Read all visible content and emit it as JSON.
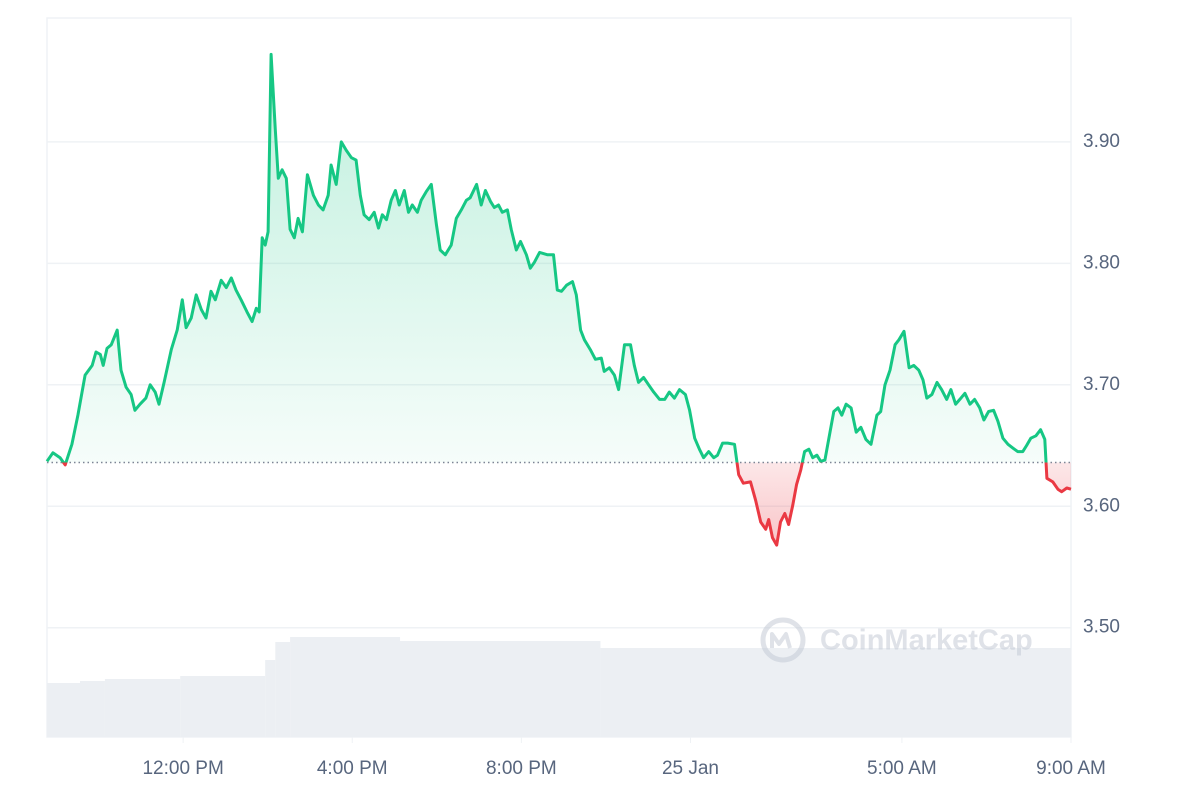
{
  "chart_data": {
    "type": "line",
    "x": [
      8.78,
      8.92,
      9.09,
      9.21,
      9.37,
      9.51,
      9.68,
      9.85,
      9.94,
      10.04,
      10.11,
      10.2,
      10.3,
      10.44,
      10.53,
      10.65,
      10.77,
      10.86,
      10.98,
      11.12,
      11.22,
      11.34,
      11.43,
      11.55,
      11.72,
      11.86,
      11.98,
      12.07,
      12.19,
      12.31,
      12.43,
      12.54,
      12.66,
      12.76,
      12.9,
      13.02,
      13.14,
      13.25,
      13.37,
      13.51,
      13.63,
      13.73,
      13.8,
      13.87,
      13.94,
      14.01,
      14.08,
      14.18,
      14.25,
      14.34,
      14.44,
      14.53,
      14.63,
      14.72,
      14.82,
      14.94,
      15.08,
      15.2,
      15.31,
      15.43,
      15.5,
      15.62,
      15.74,
      15.86,
      15.98,
      16.09,
      16.19,
      16.28,
      16.4,
      16.52,
      16.62,
      16.71,
      16.81,
      16.92,
      17.02,
      17.11,
      17.23,
      17.33,
      17.42,
      17.54,
      17.63,
      17.75,
      17.87,
      17.99,
      18.08,
      18.2,
      18.34,
      18.46,
      18.58,
      18.7,
      18.79,
      18.94,
      19.05,
      19.15,
      19.27,
      19.36,
      19.46,
      19.55,
      19.67,
      19.76,
      19.88,
      19.98,
      20.12,
      20.21,
      20.31,
      20.43,
      20.62,
      20.76,
      20.85,
      20.95,
      21.07,
      21.21,
      21.3,
      21.4,
      21.49,
      21.63,
      21.75,
      21.89,
      21.96,
      22.08,
      22.2,
      22.3,
      22.44,
      22.58,
      22.67,
      22.77,
      22.89,
      23.01,
      23.13,
      23.27,
      23.39,
      23.5,
      23.62,
      23.74,
      23.88,
      23.98,
      24.1,
      24.21,
      24.31,
      24.43,
      24.55,
      24.64,
      24.76,
      24.88,
      25.04,
      25.14,
      25.25,
      25.42,
      25.54,
      25.66,
      25.78,
      25.85,
      25.94,
      26.04,
      26.13,
      26.23,
      26.32,
      26.42,
      26.51,
      26.61,
      26.7,
      26.8,
      26.89,
      26.99,
      27.08,
      27.18,
      27.3,
      27.39,
      27.49,
      27.58,
      27.68,
      27.8,
      27.92,
      28.03,
      28.15,
      28.27,
      28.41,
      28.5,
      28.6,
      28.72,
      28.84,
      28.93,
      29.05,
      29.17,
      29.28,
      29.4,
      29.5,
      29.59,
      29.71,
      29.83,
      29.94,
      30.06,
      30.16,
      30.27,
      30.37,
      30.49,
      30.61,
      30.72,
      30.84,
      30.94,
      31.05,
      31.17,
      31.27,
      31.39,
      31.51,
      31.62,
      31.74,
      31.86,
      31.95,
      32.05,
      32.17,
      32.28,
      32.38,
      32.43,
      32.57,
      32.69,
      32.78,
      32.9,
      33.0
    ],
    "series": [
      {
        "color": "#16c784",
        "color_below": "#ea3943",
        "values": [
          3.637,
          3.644,
          3.64,
          3.634,
          3.651,
          3.675,
          3.708,
          3.716,
          3.727,
          3.725,
          3.716,
          3.73,
          3.733,
          3.745,
          3.712,
          3.698,
          3.692,
          3.679,
          3.684,
          3.689,
          3.7,
          3.694,
          3.684,
          3.702,
          3.729,
          3.745,
          3.77,
          3.747,
          3.755,
          3.774,
          3.762,
          3.755,
          3.777,
          3.77,
          3.786,
          3.78,
          3.788,
          3.778,
          3.77,
          3.76,
          3.752,
          3.763,
          3.76,
          3.821,
          3.815,
          3.826,
          3.972,
          3.91,
          3.87,
          3.877,
          3.87,
          3.828,
          3.821,
          3.837,
          3.826,
          3.873,
          3.856,
          3.848,
          3.844,
          3.856,
          3.881,
          3.865,
          3.9,
          3.893,
          3.887,
          3.885,
          3.856,
          3.84,
          3.836,
          3.842,
          3.829,
          3.84,
          3.836,
          3.852,
          3.86,
          3.848,
          3.86,
          3.842,
          3.848,
          3.842,
          3.852,
          3.859,
          3.865,
          3.832,
          3.811,
          3.807,
          3.815,
          3.837,
          3.844,
          3.852,
          3.854,
          3.865,
          3.848,
          3.86,
          3.851,
          3.846,
          3.848,
          3.842,
          3.844,
          3.828,
          3.811,
          3.818,
          3.807,
          3.796,
          3.801,
          3.809,
          3.807,
          3.807,
          3.778,
          3.777,
          3.782,
          3.785,
          3.774,
          3.745,
          3.737,
          3.729,
          3.721,
          3.722,
          3.711,
          3.714,
          3.708,
          3.696,
          3.733,
          3.733,
          3.716,
          3.702,
          3.706,
          3.7,
          3.694,
          3.688,
          3.688,
          3.694,
          3.689,
          3.696,
          3.692,
          3.679,
          3.656,
          3.647,
          3.64,
          3.645,
          3.64,
          3.642,
          3.652,
          3.652,
          3.651,
          3.626,
          3.619,
          3.62,
          3.605,
          3.587,
          3.581,
          3.589,
          3.574,
          3.568,
          3.587,
          3.594,
          3.585,
          3.601,
          3.618,
          3.63,
          3.645,
          3.647,
          3.64,
          3.642,
          3.637,
          3.638,
          3.661,
          3.678,
          3.681,
          3.675,
          3.684,
          3.681,
          3.661,
          3.665,
          3.655,
          3.651,
          3.675,
          3.678,
          3.7,
          3.712,
          3.733,
          3.737,
          3.744,
          3.714,
          3.716,
          3.712,
          3.704,
          3.689,
          3.692,
          3.702,
          3.696,
          3.688,
          3.696,
          3.684,
          3.688,
          3.693,
          3.684,
          3.688,
          3.681,
          3.671,
          3.678,
          3.679,
          3.67,
          3.656,
          3.651,
          3.648,
          3.645,
          3.645,
          3.65,
          3.656,
          3.658,
          3.663,
          3.655,
          3.623,
          3.62,
          3.614,
          3.612,
          3.615,
          3.614
        ]
      }
    ],
    "baseline": 3.636,
    "volume": {
      "x": [
        8.78,
        9.56,
        10.15,
        11.93,
        13.94,
        14.18,
        14.53,
        17.13,
        21.87
      ],
      "values": [
        54,
        56,
        58,
        61,
        77,
        95,
        100,
        96,
        89
      ],
      "color": "#eceff3"
    },
    "xlim": [
      8.78,
      33.0
    ],
    "xticks": [
      {
        "value": 12,
        "label": "12:00 PM"
      },
      {
        "value": 16,
        "label": "4:00 PM"
      },
      {
        "value": 20,
        "label": "8:00 PM"
      },
      {
        "value": 24,
        "label": "25 Jan"
      },
      {
        "value": 29,
        "label": "5:00 AM"
      },
      {
        "value": 33,
        "label": "9:00 AM"
      }
    ],
    "ylim": [
      3.41,
      4.002
    ],
    "yticks": [
      {
        "value": 3.5,
        "label": "3.50"
      },
      {
        "value": 3.6,
        "label": "3.60"
      },
      {
        "value": 3.7,
        "label": "3.70"
      },
      {
        "value": 3.8,
        "label": "3.80"
      },
      {
        "value": 3.9,
        "label": "3.90"
      }
    ],
    "grid": true,
    "watermark": "CoinMarketCap"
  }
}
